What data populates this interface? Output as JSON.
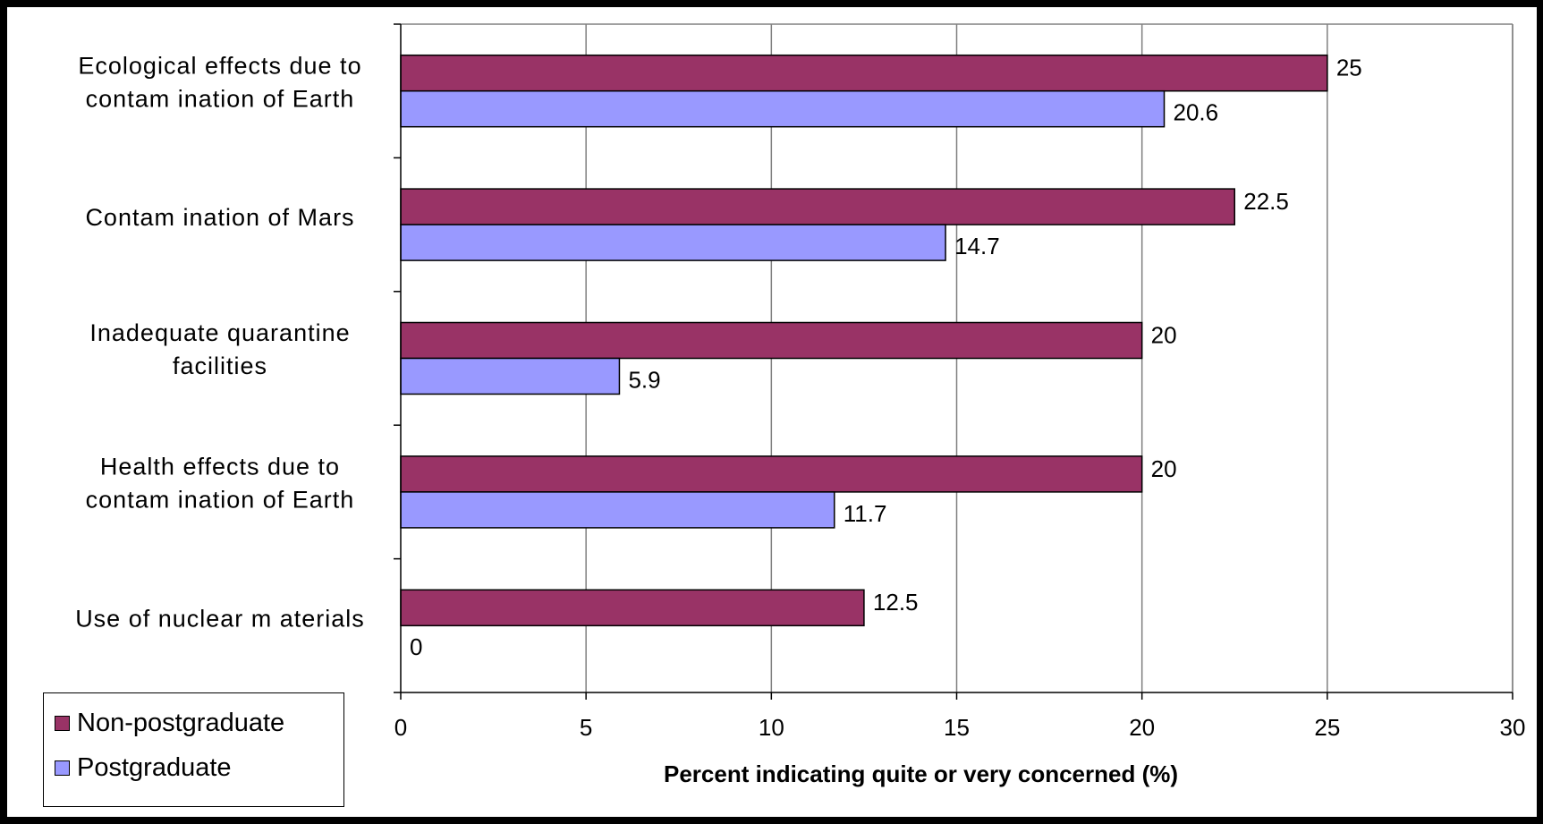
{
  "chart_data": {
    "type": "bar",
    "orientation": "horizontal",
    "categories": [
      [
        "Ecological effects due to",
        "contam ination of Earth"
      ],
      [
        "Contam ination of Mars"
      ],
      [
        "Inadequate quarantine",
        "facilities"
      ],
      [
        "Health effects due to",
        "contam ination of Earth"
      ],
      [
        "Use of nuclear m aterials"
      ]
    ],
    "series": [
      {
        "name": "Non-postgraduate",
        "color": "#993366",
        "values": [
          25,
          22.5,
          20,
          20,
          12.5
        ],
        "labels": [
          "25",
          "22.5",
          "20",
          "20",
          "12.5"
        ]
      },
      {
        "name": "Postgraduate",
        "color": "#9999FF",
        "values": [
          20.6,
          14.7,
          5.9,
          11.7,
          0
        ],
        "labels": [
          "20.6",
          "14.7",
          "5.9",
          "11.7",
          "0"
        ]
      }
    ],
    "xlabel": "Percent indicating quite or very concerned (%)",
    "xlim": [
      0,
      30
    ],
    "xticks": [
      "0",
      "5",
      "10",
      "15",
      "20",
      "25",
      "30"
    ],
    "grid": true,
    "legend_position": "bottom-left"
  }
}
